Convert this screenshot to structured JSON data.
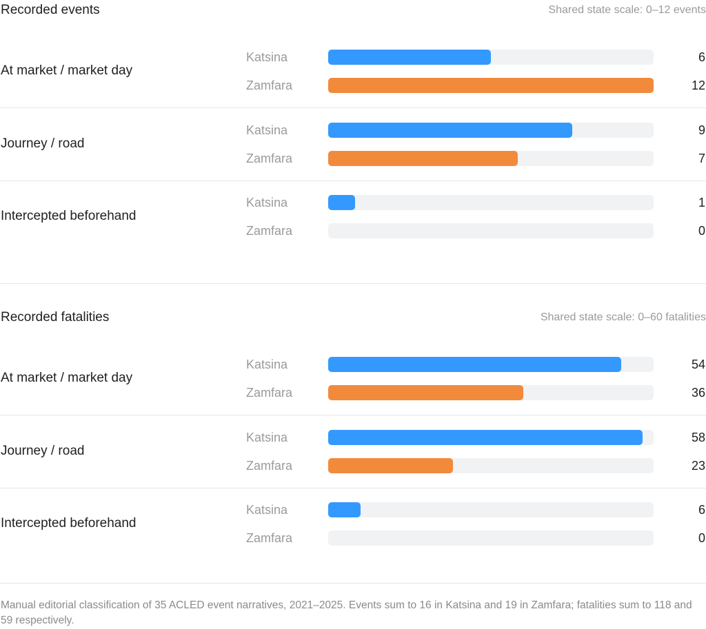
{
  "footnote": "Manual editorial classification of 35 ACLED event narratives, 2021–2025. Events sum to 16 in Katsina and 19 in Zamfara; fatalities sum to 118 and 59 respectively.",
  "colors": {
    "katsina": "#3399ff",
    "zamfara": "#f28a3c",
    "track": "#f1f2f3"
  },
  "chart_data": [
    {
      "type": "bar",
      "title": "Recorded events",
      "subtitle": "Shared state scale: 0–12 events",
      "xlim": [
        0,
        12
      ],
      "categories": [
        "At market / market day",
        "Journey / road",
        "Intercepted beforehand"
      ],
      "series": [
        {
          "name": "Katsina",
          "values": [
            6,
            9,
            1
          ]
        },
        {
          "name": "Zamfara",
          "values": [
            12,
            7,
            0
          ]
        }
      ]
    },
    {
      "type": "bar",
      "title": "Recorded fatalities",
      "subtitle": "Shared state scale: 0–60 fatalities",
      "xlim": [
        0,
        60
      ],
      "categories": [
        "At market / market day",
        "Journey / road",
        "Intercepted beforehand"
      ],
      "series": [
        {
          "name": "Katsina",
          "values": [
            54,
            58,
            6
          ]
        },
        {
          "name": "Zamfara",
          "values": [
            36,
            23,
            0
          ]
        }
      ]
    }
  ]
}
